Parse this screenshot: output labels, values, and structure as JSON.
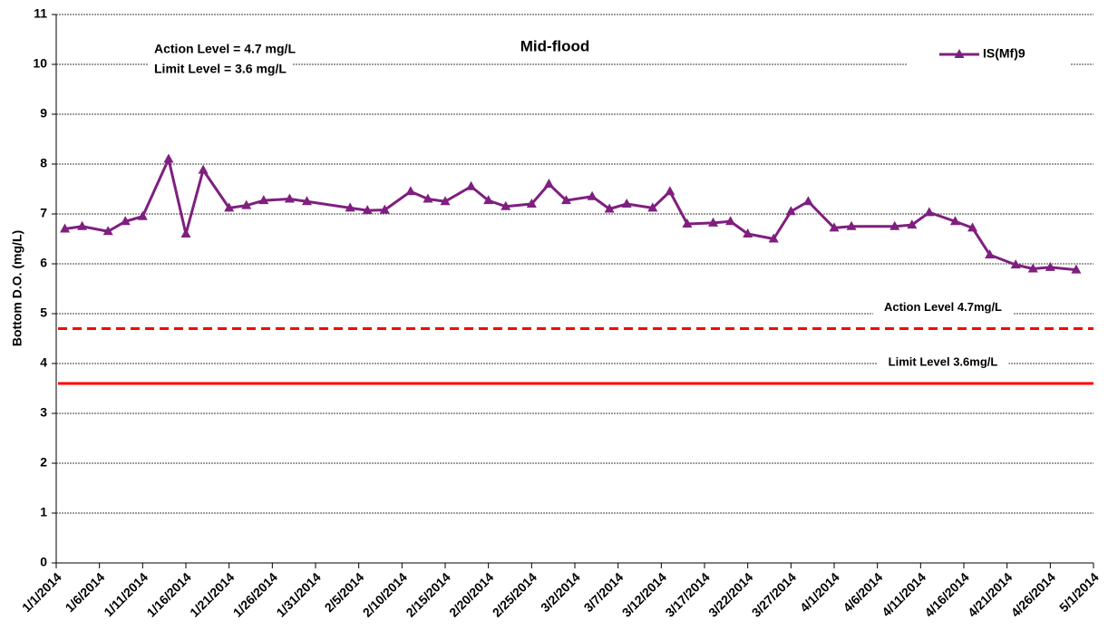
{
  "chart_data": {
    "type": "line",
    "y_label": "Bottom D.O. (mg/L)",
    "annotations": [
      "Action Level = 4.7 mg/L",
      "Limit Level = 3.6 mg/L",
      "Mid-flood"
    ],
    "x": [
      "2014-01-02",
      "2014-01-04",
      "2014-01-07",
      "2014-01-09",
      "2014-01-11",
      "2014-01-14",
      "2014-01-16",
      "2014-01-18",
      "2014-01-21",
      "2014-01-23",
      "2014-01-25",
      "2014-01-28",
      "2014-01-30",
      "2014-02-04",
      "2014-02-06",
      "2014-02-08",
      "2014-02-11",
      "2014-02-13",
      "2014-02-15",
      "2014-02-18",
      "2014-02-20",
      "2014-02-22",
      "2014-02-25",
      "2014-02-27",
      "2014-03-01",
      "2014-03-04",
      "2014-03-06",
      "2014-03-08",
      "2014-03-11",
      "2014-03-13",
      "2014-03-15",
      "2014-03-18",
      "2014-03-20",
      "2014-03-22",
      "2014-03-25",
      "2014-03-27",
      "2014-03-29",
      "2014-04-01",
      "2014-04-03",
      "2014-04-08",
      "2014-04-10",
      "2014-04-12",
      "2014-04-15",
      "2014-04-17",
      "2014-04-19",
      "2014-04-22",
      "2014-04-24",
      "2014-04-26",
      "2014-04-29"
    ],
    "series": [
      {
        "name": "IS(Mf)9",
        "color": "#7f1f7f",
        "values": [
          6.7,
          6.75,
          6.65,
          6.85,
          6.95,
          8.1,
          6.6,
          7.88,
          7.12,
          7.17,
          7.27,
          7.3,
          7.25,
          7.12,
          7.07,
          7.08,
          7.45,
          7.3,
          7.25,
          7.55,
          7.27,
          7.15,
          7.2,
          7.6,
          7.27,
          7.35,
          7.1,
          7.2,
          7.12,
          7.45,
          6.8,
          6.82,
          6.85,
          6.6,
          6.5,
          7.05,
          7.25,
          6.72,
          6.75,
          6.75,
          6.78,
          7.03,
          6.85,
          6.72,
          6.18,
          5.98,
          5.9,
          5.93,
          5.88
        ]
      }
    ],
    "reference_lines": [
      {
        "label": "Action Level 4.7mg/L",
        "value": 4.7,
        "color": "#ff0000",
        "dashed": true
      },
      {
        "label": "Limit Level 3.6mg/L",
        "value": 3.6,
        "color": "#ff0000",
        "dashed": false
      }
    ],
    "xlim": [
      "2014-01-01",
      "2014-05-01"
    ],
    "xticks": [
      {
        "value": "2014-01-01",
        "label": "1/1/2014"
      },
      {
        "value": "2014-01-06",
        "label": "1/6/2014"
      },
      {
        "value": "2014-01-11",
        "label": "1/11/2014"
      },
      {
        "value": "2014-01-16",
        "label": "1/16/2014"
      },
      {
        "value": "2014-01-21",
        "label": "1/21/2014"
      },
      {
        "value": "2014-01-26",
        "label": "1/26/2014"
      },
      {
        "value": "2014-01-31",
        "label": "1/31/2014"
      },
      {
        "value": "2014-02-05",
        "label": "2/5/2014"
      },
      {
        "value": "2014-02-10",
        "label": "2/10/2014"
      },
      {
        "value": "2014-02-15",
        "label": "2/15/2014"
      },
      {
        "value": "2014-02-20",
        "label": "2/20/2014"
      },
      {
        "value": "2014-02-25",
        "label": "2/25/2014"
      },
      {
        "value": "2014-03-02",
        "label": "3/2/2014"
      },
      {
        "value": "2014-03-07",
        "label": "3/7/2014"
      },
      {
        "value": "2014-03-12",
        "label": "3/12/2014"
      },
      {
        "value": "2014-03-17",
        "label": "3/17/2014"
      },
      {
        "value": "2014-03-22",
        "label": "3/22/2014"
      },
      {
        "value": "2014-03-27",
        "label": "3/27/2014"
      },
      {
        "value": "2014-04-01",
        "label": "4/1/2014"
      },
      {
        "value": "2014-04-06",
        "label": "4/6/2014"
      },
      {
        "value": "2014-04-11",
        "label": "4/11/2014"
      },
      {
        "value": "2014-04-16",
        "label": "4/16/2014"
      },
      {
        "value": "2014-04-21",
        "label": "4/21/2014"
      },
      {
        "value": "2014-04-26",
        "label": "4/26/2014"
      },
      {
        "value": "2014-05-01",
        "label": "5/1/2014"
      }
    ],
    "ylim": [
      0,
      11
    ],
    "yticks": [
      0,
      1,
      2,
      3,
      4,
      5,
      6,
      7,
      8,
      9,
      10,
      11
    ],
    "grid": true,
    "legend": "top-right"
  }
}
